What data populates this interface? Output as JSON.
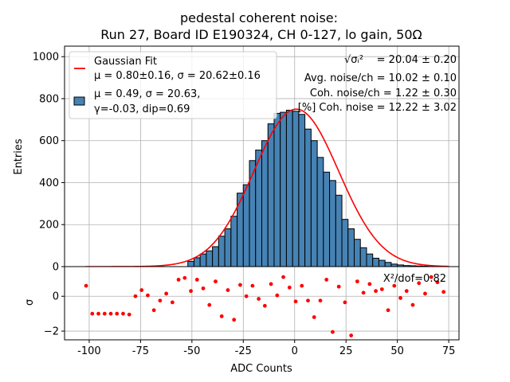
{
  "chart_data": {
    "type": "bar",
    "title_line1": "pedestal coherent noise:",
    "title_line2": "Run 27, Board ID E190324, CH 0-127, lo gain, 50Ω",
    "xlabel": "ADC Counts",
    "ylabel_top": "Entries",
    "ylabel_bottom": "σ",
    "xlim": [
      -112,
      80
    ],
    "ylim_top": [
      0,
      1050
    ],
    "ylim_bottom": [
      -2.5,
      1.7
    ],
    "xticks": [
      -100,
      -75,
      -50,
      -25,
      0,
      25,
      50,
      75
    ],
    "yticks_top": [
      0,
      200,
      400,
      600,
      800,
      1000
    ],
    "yticks_bottom": [
      -2,
      0
    ],
    "grid": true,
    "legend_position": "top-left",
    "legend": {
      "fit_title": "Gaussian Fit",
      "fit_params": "μ = 0.80±0.16, σ = 20.62±0.16",
      "hist_line1": "μ = 0.49, σ = 20.63,",
      "hist_line2": "γ=-0.03, dip=0.69"
    },
    "stats": {
      "sqrt_label": "√σᵢ²",
      "sqrt_value": "= 20.04 ± 0.20",
      "avg_noise": "Avg. noise/ch = 10.02 ± 0.10",
      "coh_noise_ch": "Coh. noise/ch = 1.22 ± 0.30",
      "coh_noise_pct": "[%] Coh. noise = 12.22  ± 3.02"
    },
    "chi2": "X²/dof=0.82",
    "colors": {
      "bar": "#4682b4",
      "bar_edge": "#000000",
      "fit": "#ff0000",
      "residual": "#ff0000"
    },
    "histogram": {
      "bin_width": 3,
      "bin_starts": [
        -52,
        -49,
        -46,
        -43,
        -40,
        -37,
        -34,
        -31,
        -28,
        -25,
        -22,
        -19,
        -16,
        -13,
        -10,
        -7,
        -4,
        -1,
        2,
        5,
        8,
        11,
        14,
        17,
        20,
        23,
        26,
        29,
        32,
        35,
        38,
        41,
        44,
        47,
        50,
        53,
        56,
        59,
        62,
        65
      ],
      "counts": [
        25,
        42,
        60,
        75,
        95,
        145,
        180,
        240,
        350,
        390,
        505,
        555,
        600,
        680,
        730,
        735,
        745,
        740,
        725,
        655,
        600,
        520,
        450,
        410,
        340,
        225,
        180,
        130,
        90,
        60,
        40,
        30,
        20,
        12,
        8,
        5,
        4,
        3,
        2,
        1
      ]
    },
    "gaussian_fit": {
      "mu": 0.8,
      "sigma": 20.62,
      "amplitude": 750,
      "x_range": [
        -102,
        75
      ]
    },
    "residuals": {
      "x": [
        -101.5,
        -98.5,
        -95.5,
        -92.5,
        -89.5,
        -86.5,
        -83.5,
        -80.5,
        -77.5,
        -74.5,
        -71.5,
        -68.5,
        -65.5,
        -62.5,
        -59.5,
        -56.5,
        -53.5,
        -50.5,
        -47.5,
        -44.5,
        -41.5,
        -38.5,
        -35.5,
        -32.5,
        -29.5,
        -26.5,
        -23.5,
        -20.5,
        -17.5,
        -14.5,
        -11.5,
        -8.5,
        -5.5,
        -2.5,
        0.5,
        3.5,
        6.5,
        9.5,
        12.5,
        15.5,
        18.5,
        21.5,
        24.5,
        27.5,
        30.5,
        33.5,
        36.5,
        39.5,
        42.5,
        45.5,
        48.5,
        51.5,
        54.5,
        57.5,
        60.5,
        63.5,
        66.5,
        69.5,
        72.5
      ],
      "y": [
        0.6,
        -1.0,
        -1.0,
        -1.0,
        -1.0,
        -1.0,
        -1.0,
        -1.05,
        0.0,
        0.35,
        0.05,
        -0.8,
        -0.25,
        0.15,
        -0.35,
        0.95,
        1.05,
        0.3,
        0.95,
        0.45,
        -0.5,
        0.85,
        -1.15,
        0.35,
        -1.35,
        0.65,
        0.0,
        0.6,
        -0.15,
        -0.55,
        0.7,
        0.05,
        1.1,
        0.5,
        -0.3,
        0.6,
        -0.25,
        -1.2,
        -0.25,
        0.95,
        -2.05,
        0.55,
        -0.35,
        -2.25,
        0.85,
        0.2,
        0.7,
        0.3,
        0.4,
        -0.8,
        0.6,
        -0.1,
        0.3,
        -0.5,
        0.75,
        0.15,
        1.1,
        0.8,
        0.25
      ],
      "y_display_subset": true
    }
  }
}
